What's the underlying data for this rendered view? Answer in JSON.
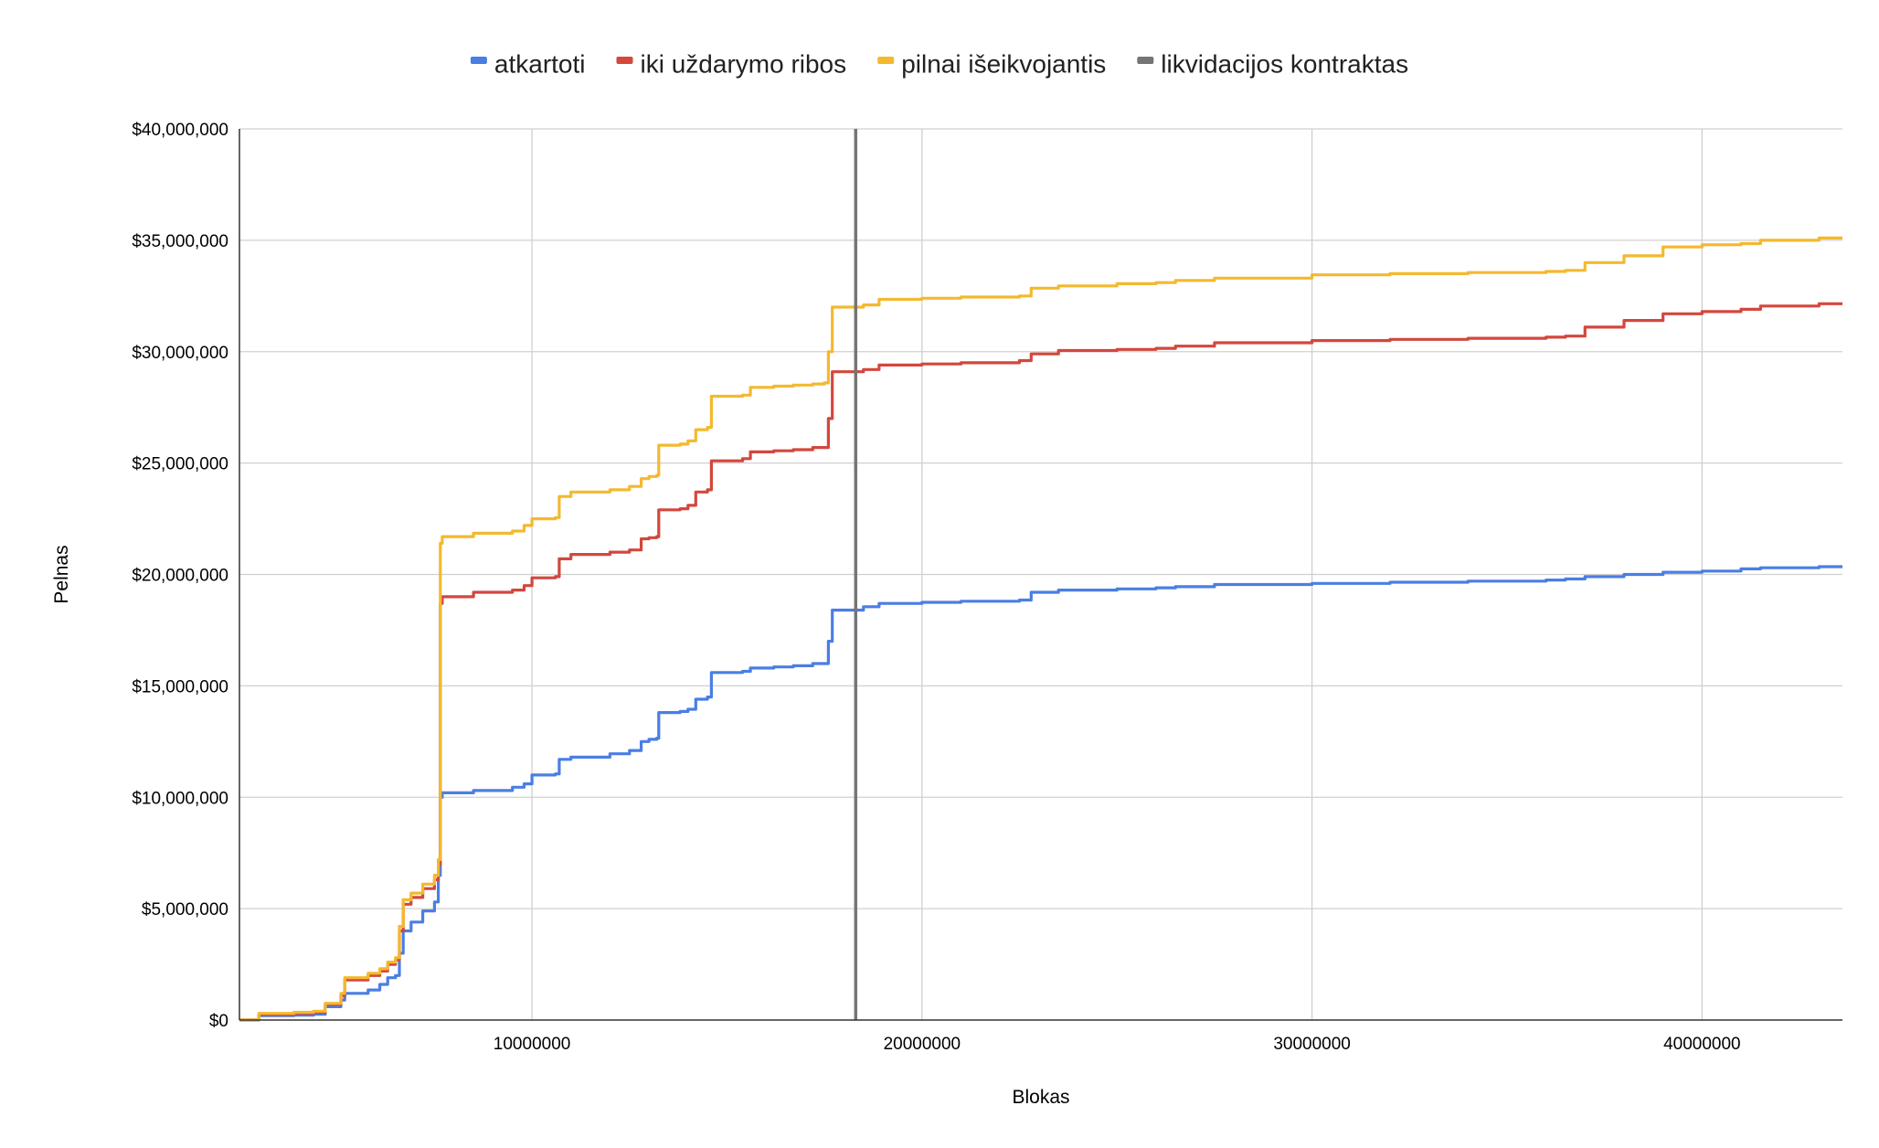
{
  "chart_data": {
    "type": "line",
    "title": "",
    "xlabel": "Blokas",
    "ylabel": "Pelnas",
    "xlim": [
      2500000,
      43600000
    ],
    "ylim": [
      0,
      40000000
    ],
    "grid": true,
    "legend_position": "top",
    "x_ticks": [
      10000000,
      20000000,
      30000000,
      40000000
    ],
    "x_tick_labels": [
      "10000000",
      "20000000",
      "30000000",
      "40000000"
    ],
    "y_ticks": [
      0,
      5000000,
      10000000,
      15000000,
      20000000,
      25000000,
      30000000,
      35000000,
      40000000
    ],
    "y_tick_labels": [
      "$0",
      "$5,000,000",
      "$10,000,000",
      "$15,000,000",
      "$20,000,000",
      "$25,000,000",
      "$30,000,000",
      "$35,000,000",
      "$40,000,000"
    ],
    "reference_line": {
      "name": "likvidacijos kontraktas",
      "x": 18300000,
      "color": "#757575"
    },
    "series": [
      {
        "name": "atkartoti",
        "color": "#4a7ee3",
        "points": [
          [
            2500000,
            0
          ],
          [
            3000000,
            200000
          ],
          [
            3900000,
            220000
          ],
          [
            4400000,
            260000
          ],
          [
            4700000,
            600000
          ],
          [
            5100000,
            900000
          ],
          [
            5200000,
            1200000
          ],
          [
            5800000,
            1350000
          ],
          [
            6100000,
            1600000
          ],
          [
            6300000,
            1900000
          ],
          [
            6500000,
            2000000
          ],
          [
            6600000,
            3000000
          ],
          [
            6700000,
            4000000
          ],
          [
            6900000,
            4400000
          ],
          [
            7200000,
            4900000
          ],
          [
            7500000,
            5300000
          ],
          [
            7600000,
            6500000
          ],
          [
            7650000,
            10000000
          ],
          [
            7700000,
            10200000
          ],
          [
            8500000,
            10300000
          ],
          [
            9500000,
            10450000
          ],
          [
            9800000,
            10600000
          ],
          [
            10000000,
            11000000
          ],
          [
            10600000,
            11050000
          ],
          [
            10700000,
            11700000
          ],
          [
            11000000,
            11800000
          ],
          [
            12000000,
            11950000
          ],
          [
            12500000,
            12100000
          ],
          [
            12800000,
            12500000
          ],
          [
            13000000,
            12600000
          ],
          [
            13200000,
            12650000
          ],
          [
            13250000,
            13800000
          ],
          [
            13800000,
            13850000
          ],
          [
            14000000,
            13950000
          ],
          [
            14200000,
            14400000
          ],
          [
            14500000,
            14500000
          ],
          [
            14600000,
            15600000
          ],
          [
            15400000,
            15650000
          ],
          [
            15600000,
            15800000
          ],
          [
            16200000,
            15850000
          ],
          [
            16700000,
            15900000
          ],
          [
            17200000,
            16000000
          ],
          [
            17500000,
            16000000
          ],
          [
            17600000,
            17000000
          ],
          [
            17700000,
            18400000
          ],
          [
            18500000,
            18550000
          ],
          [
            18900000,
            18700000
          ],
          [
            20000000,
            18750000
          ],
          [
            21000000,
            18800000
          ],
          [
            22500000,
            18850000
          ],
          [
            22800000,
            19200000
          ],
          [
            23500000,
            19300000
          ],
          [
            25000000,
            19350000
          ],
          [
            26000000,
            19400000
          ],
          [
            26500000,
            19450000
          ],
          [
            27500000,
            19550000
          ],
          [
            30000000,
            19600000
          ],
          [
            32000000,
            19650000
          ],
          [
            34000000,
            19700000
          ],
          [
            36000000,
            19750000
          ],
          [
            36500000,
            19800000
          ],
          [
            37000000,
            19900000
          ],
          [
            38000000,
            20000000
          ],
          [
            39000000,
            20100000
          ],
          [
            40000000,
            20150000
          ],
          [
            41000000,
            20250000
          ],
          [
            41500000,
            20300000
          ],
          [
            43000000,
            20350000
          ],
          [
            43600000,
            20350000
          ]
        ]
      },
      {
        "name": "iki uždarymo ribos",
        "color": "#d3473d",
        "points": [
          [
            2500000,
            0
          ],
          [
            3000000,
            250000
          ],
          [
            3900000,
            300000
          ],
          [
            4400000,
            350000
          ],
          [
            4700000,
            700000
          ],
          [
            5100000,
            1100000
          ],
          [
            5200000,
            1800000
          ],
          [
            5800000,
            2000000
          ],
          [
            6100000,
            2200000
          ],
          [
            6300000,
            2500000
          ],
          [
            6500000,
            2700000
          ],
          [
            6600000,
            4000000
          ],
          [
            6700000,
            5200000
          ],
          [
            6900000,
            5500000
          ],
          [
            7200000,
            5900000
          ],
          [
            7500000,
            6300000
          ],
          [
            7600000,
            7000000
          ],
          [
            7650000,
            18700000
          ],
          [
            7700000,
            19000000
          ],
          [
            8500000,
            19200000
          ],
          [
            9500000,
            19300000
          ],
          [
            9800000,
            19500000
          ],
          [
            10000000,
            19850000
          ],
          [
            10600000,
            19900000
          ],
          [
            10700000,
            20700000
          ],
          [
            11000000,
            20900000
          ],
          [
            12000000,
            21000000
          ],
          [
            12500000,
            21100000
          ],
          [
            12800000,
            21600000
          ],
          [
            13000000,
            21650000
          ],
          [
            13200000,
            21700000
          ],
          [
            13250000,
            22900000
          ],
          [
            13800000,
            22950000
          ],
          [
            14000000,
            23100000
          ],
          [
            14200000,
            23700000
          ],
          [
            14500000,
            23800000
          ],
          [
            14600000,
            25100000
          ],
          [
            15400000,
            25200000
          ],
          [
            15600000,
            25500000
          ],
          [
            16200000,
            25550000
          ],
          [
            16700000,
            25600000
          ],
          [
            17200000,
            25700000
          ],
          [
            17500000,
            25700000
          ],
          [
            17600000,
            27000000
          ],
          [
            17700000,
            29100000
          ],
          [
            18500000,
            29200000
          ],
          [
            18900000,
            29400000
          ],
          [
            20000000,
            29450000
          ],
          [
            21000000,
            29500000
          ],
          [
            22500000,
            29600000
          ],
          [
            22800000,
            29900000
          ],
          [
            23500000,
            30050000
          ],
          [
            25000000,
            30100000
          ],
          [
            26000000,
            30150000
          ],
          [
            26500000,
            30250000
          ],
          [
            27500000,
            30400000
          ],
          [
            30000000,
            30500000
          ],
          [
            32000000,
            30550000
          ],
          [
            34000000,
            30600000
          ],
          [
            36000000,
            30650000
          ],
          [
            36500000,
            30700000
          ],
          [
            37000000,
            31100000
          ],
          [
            38000000,
            31400000
          ],
          [
            39000000,
            31700000
          ],
          [
            40000000,
            31800000
          ],
          [
            41000000,
            31900000
          ],
          [
            41500000,
            32050000
          ],
          [
            43000000,
            32150000
          ],
          [
            43600000,
            32150000
          ]
        ]
      },
      {
        "name": "pilnai išeikvojantis",
        "color": "#f3b92f",
        "points": [
          [
            2500000,
            0
          ],
          [
            3000000,
            300000
          ],
          [
            3900000,
            350000
          ],
          [
            4400000,
            400000
          ],
          [
            4700000,
            750000
          ],
          [
            5100000,
            1200000
          ],
          [
            5200000,
            1900000
          ],
          [
            5800000,
            2100000
          ],
          [
            6100000,
            2300000
          ],
          [
            6300000,
            2600000
          ],
          [
            6500000,
            2800000
          ],
          [
            6600000,
            4200000
          ],
          [
            6700000,
            5400000
          ],
          [
            6900000,
            5700000
          ],
          [
            7200000,
            6100000
          ],
          [
            7500000,
            6500000
          ],
          [
            7600000,
            7200000
          ],
          [
            7650000,
            21400000
          ],
          [
            7700000,
            21700000
          ],
          [
            8500000,
            21850000
          ],
          [
            9500000,
            21950000
          ],
          [
            9800000,
            22200000
          ],
          [
            10000000,
            22500000
          ],
          [
            10600000,
            22550000
          ],
          [
            10700000,
            23500000
          ],
          [
            11000000,
            23700000
          ],
          [
            12000000,
            23800000
          ],
          [
            12500000,
            23950000
          ],
          [
            12800000,
            24300000
          ],
          [
            13000000,
            24400000
          ],
          [
            13200000,
            24450000
          ],
          [
            13250000,
            25800000
          ],
          [
            13800000,
            25850000
          ],
          [
            14000000,
            26000000
          ],
          [
            14200000,
            26500000
          ],
          [
            14500000,
            26600000
          ],
          [
            14600000,
            28000000
          ],
          [
            15400000,
            28050000
          ],
          [
            15600000,
            28400000
          ],
          [
            16200000,
            28450000
          ],
          [
            16700000,
            28500000
          ],
          [
            17200000,
            28550000
          ],
          [
            17500000,
            28600000
          ],
          [
            17600000,
            30000000
          ],
          [
            17700000,
            32000000
          ],
          [
            18500000,
            32100000
          ],
          [
            18900000,
            32350000
          ],
          [
            20000000,
            32400000
          ],
          [
            21000000,
            32450000
          ],
          [
            22500000,
            32500000
          ],
          [
            22800000,
            32850000
          ],
          [
            23500000,
            32950000
          ],
          [
            25000000,
            33050000
          ],
          [
            26000000,
            33100000
          ],
          [
            26500000,
            33200000
          ],
          [
            27500000,
            33300000
          ],
          [
            30000000,
            33450000
          ],
          [
            32000000,
            33500000
          ],
          [
            34000000,
            33550000
          ],
          [
            36000000,
            33600000
          ],
          [
            36500000,
            33650000
          ],
          [
            37000000,
            34000000
          ],
          [
            38000000,
            34300000
          ],
          [
            39000000,
            34700000
          ],
          [
            40000000,
            34800000
          ],
          [
            41000000,
            34850000
          ],
          [
            41500000,
            35000000
          ],
          [
            43000000,
            35100000
          ],
          [
            43600000,
            35100000
          ]
        ]
      }
    ]
  }
}
